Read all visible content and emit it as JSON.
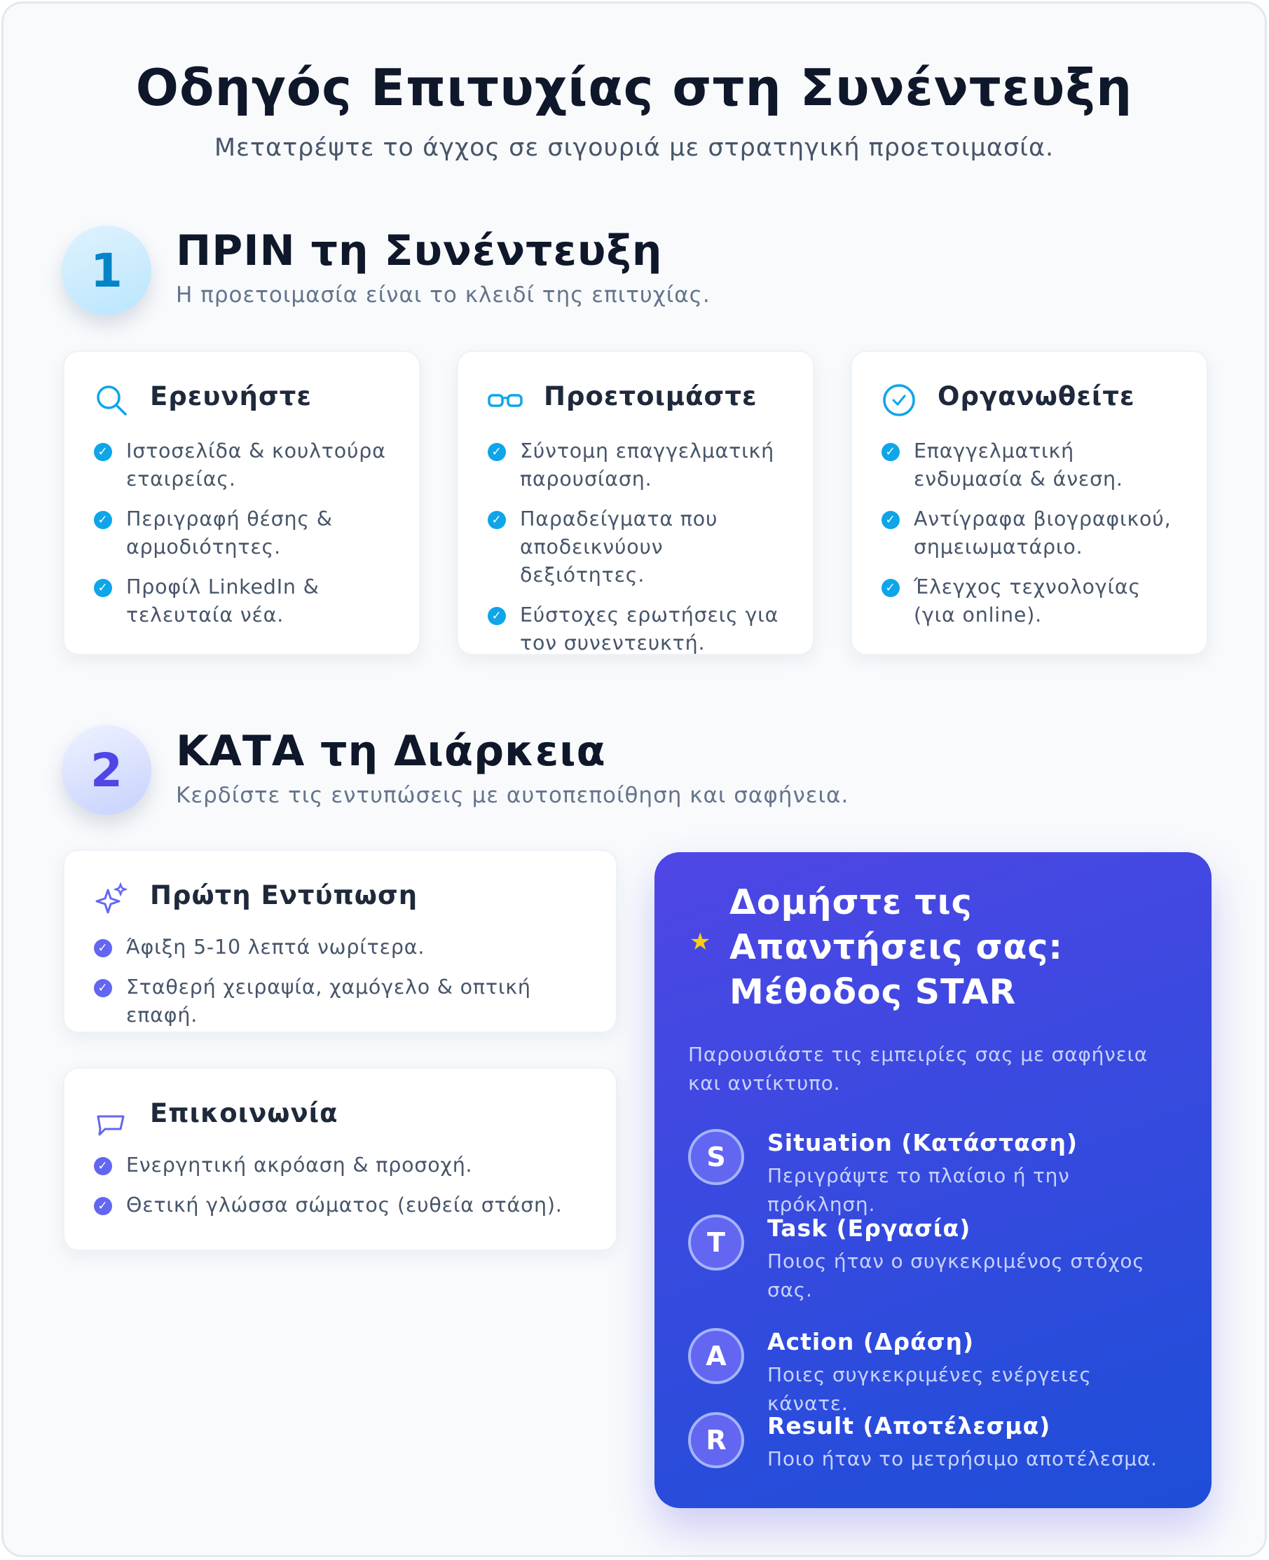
{
  "header": {
    "title": "Οδηγός Επιτυχίας στη Συνέντευξη",
    "subtitle": "Μετατρέψτε το άγχος σε σιγουριά με στρατηγική προετοιμασία."
  },
  "before": {
    "number": "1",
    "title": "ΠΡΙΝ τη Συνέντευξη",
    "subtitle": "Η προετοιμασία είναι το κλειδί της επιτυχίας.",
    "accent": "#0ea5e9",
    "cards": [
      {
        "icon": "search-icon",
        "title": "Ερευνήστε",
        "items": [
          "Ιστοσελίδα & κουλτούρα εταιρείας.",
          "Περιγραφή θέσης & αρμοδιότητες.",
          "Προφίλ LinkedIn & τελευταία νέα."
        ]
      },
      {
        "icon": "glasses-icon",
        "title": "Προετοιμάστε",
        "items": [
          "Σύντομη επαγγελματική παρουσίαση.",
          "Παραδείγματα που αποδεικνύουν δεξιότητες.",
          "Εύστοχες ερωτήσεις για τον συνεντευκτή."
        ]
      },
      {
        "icon": "check-circle-icon",
        "title": "Οργανωθείτε",
        "items": [
          "Επαγγελματική ενδυμασία & άνεση.",
          "Αντίγραφα βιογραφικού, σημειωματάριο.",
          "Έλεγχος τεχνολογίας (για online)."
        ]
      }
    ]
  },
  "during": {
    "number": "2",
    "title": "ΚΑΤΑ τη Διάρκεια",
    "subtitle": "Κερδίστε τις εντυπώσεις με αυτοπεποίθηση και σαφήνεια.",
    "accent": "#6366f1",
    "cards": [
      {
        "icon": "sparkles-icon",
        "title": "Πρώτη Εντύπωση",
        "items": [
          "Άφιξη 5-10 λεπτά νωρίτερα.",
          "Σταθερή χειραψία, χαμόγελο & οπτική επαφή."
        ]
      },
      {
        "icon": "speech-bubble-icon",
        "title": "Επικοινωνία",
        "items": [
          "Ενεργητική ακρόαση & προσοχή.",
          "Θετική γλώσσα σώματος (ευθεία στάση)."
        ]
      }
    ]
  },
  "star": {
    "title_lines": [
      "Δομήστε τις",
      "Απαντήσεις σας:",
      "Μέθοδος STAR"
    ],
    "description": "Παρουσιάστε τις εμπειρίες σας με σαφήνεια και αντίκτυπο.",
    "items": [
      {
        "letter": "S",
        "title": "Situation (Κατάσταση)",
        "text": "Περιγράψτε το πλαίσιο ή την πρόκληση."
      },
      {
        "letter": "T",
        "title": "Task (Εργασία)",
        "text": "Ποιος ήταν ο συγκεκριμένος στόχος σας."
      },
      {
        "letter": "A",
        "title": "Action (Δράση)",
        "text": "Ποιες συγκεκριμένες ενέργειες κάνατε."
      },
      {
        "letter": "R",
        "title": "Result (Αποτέλεσμα)",
        "text": "Ποιο ήταν το μετρήσιμο αποτέλεσμα."
      }
    ],
    "gradient": [
      "#4f46e5",
      "#1d4ed8"
    ],
    "star_color": "#facc15"
  }
}
